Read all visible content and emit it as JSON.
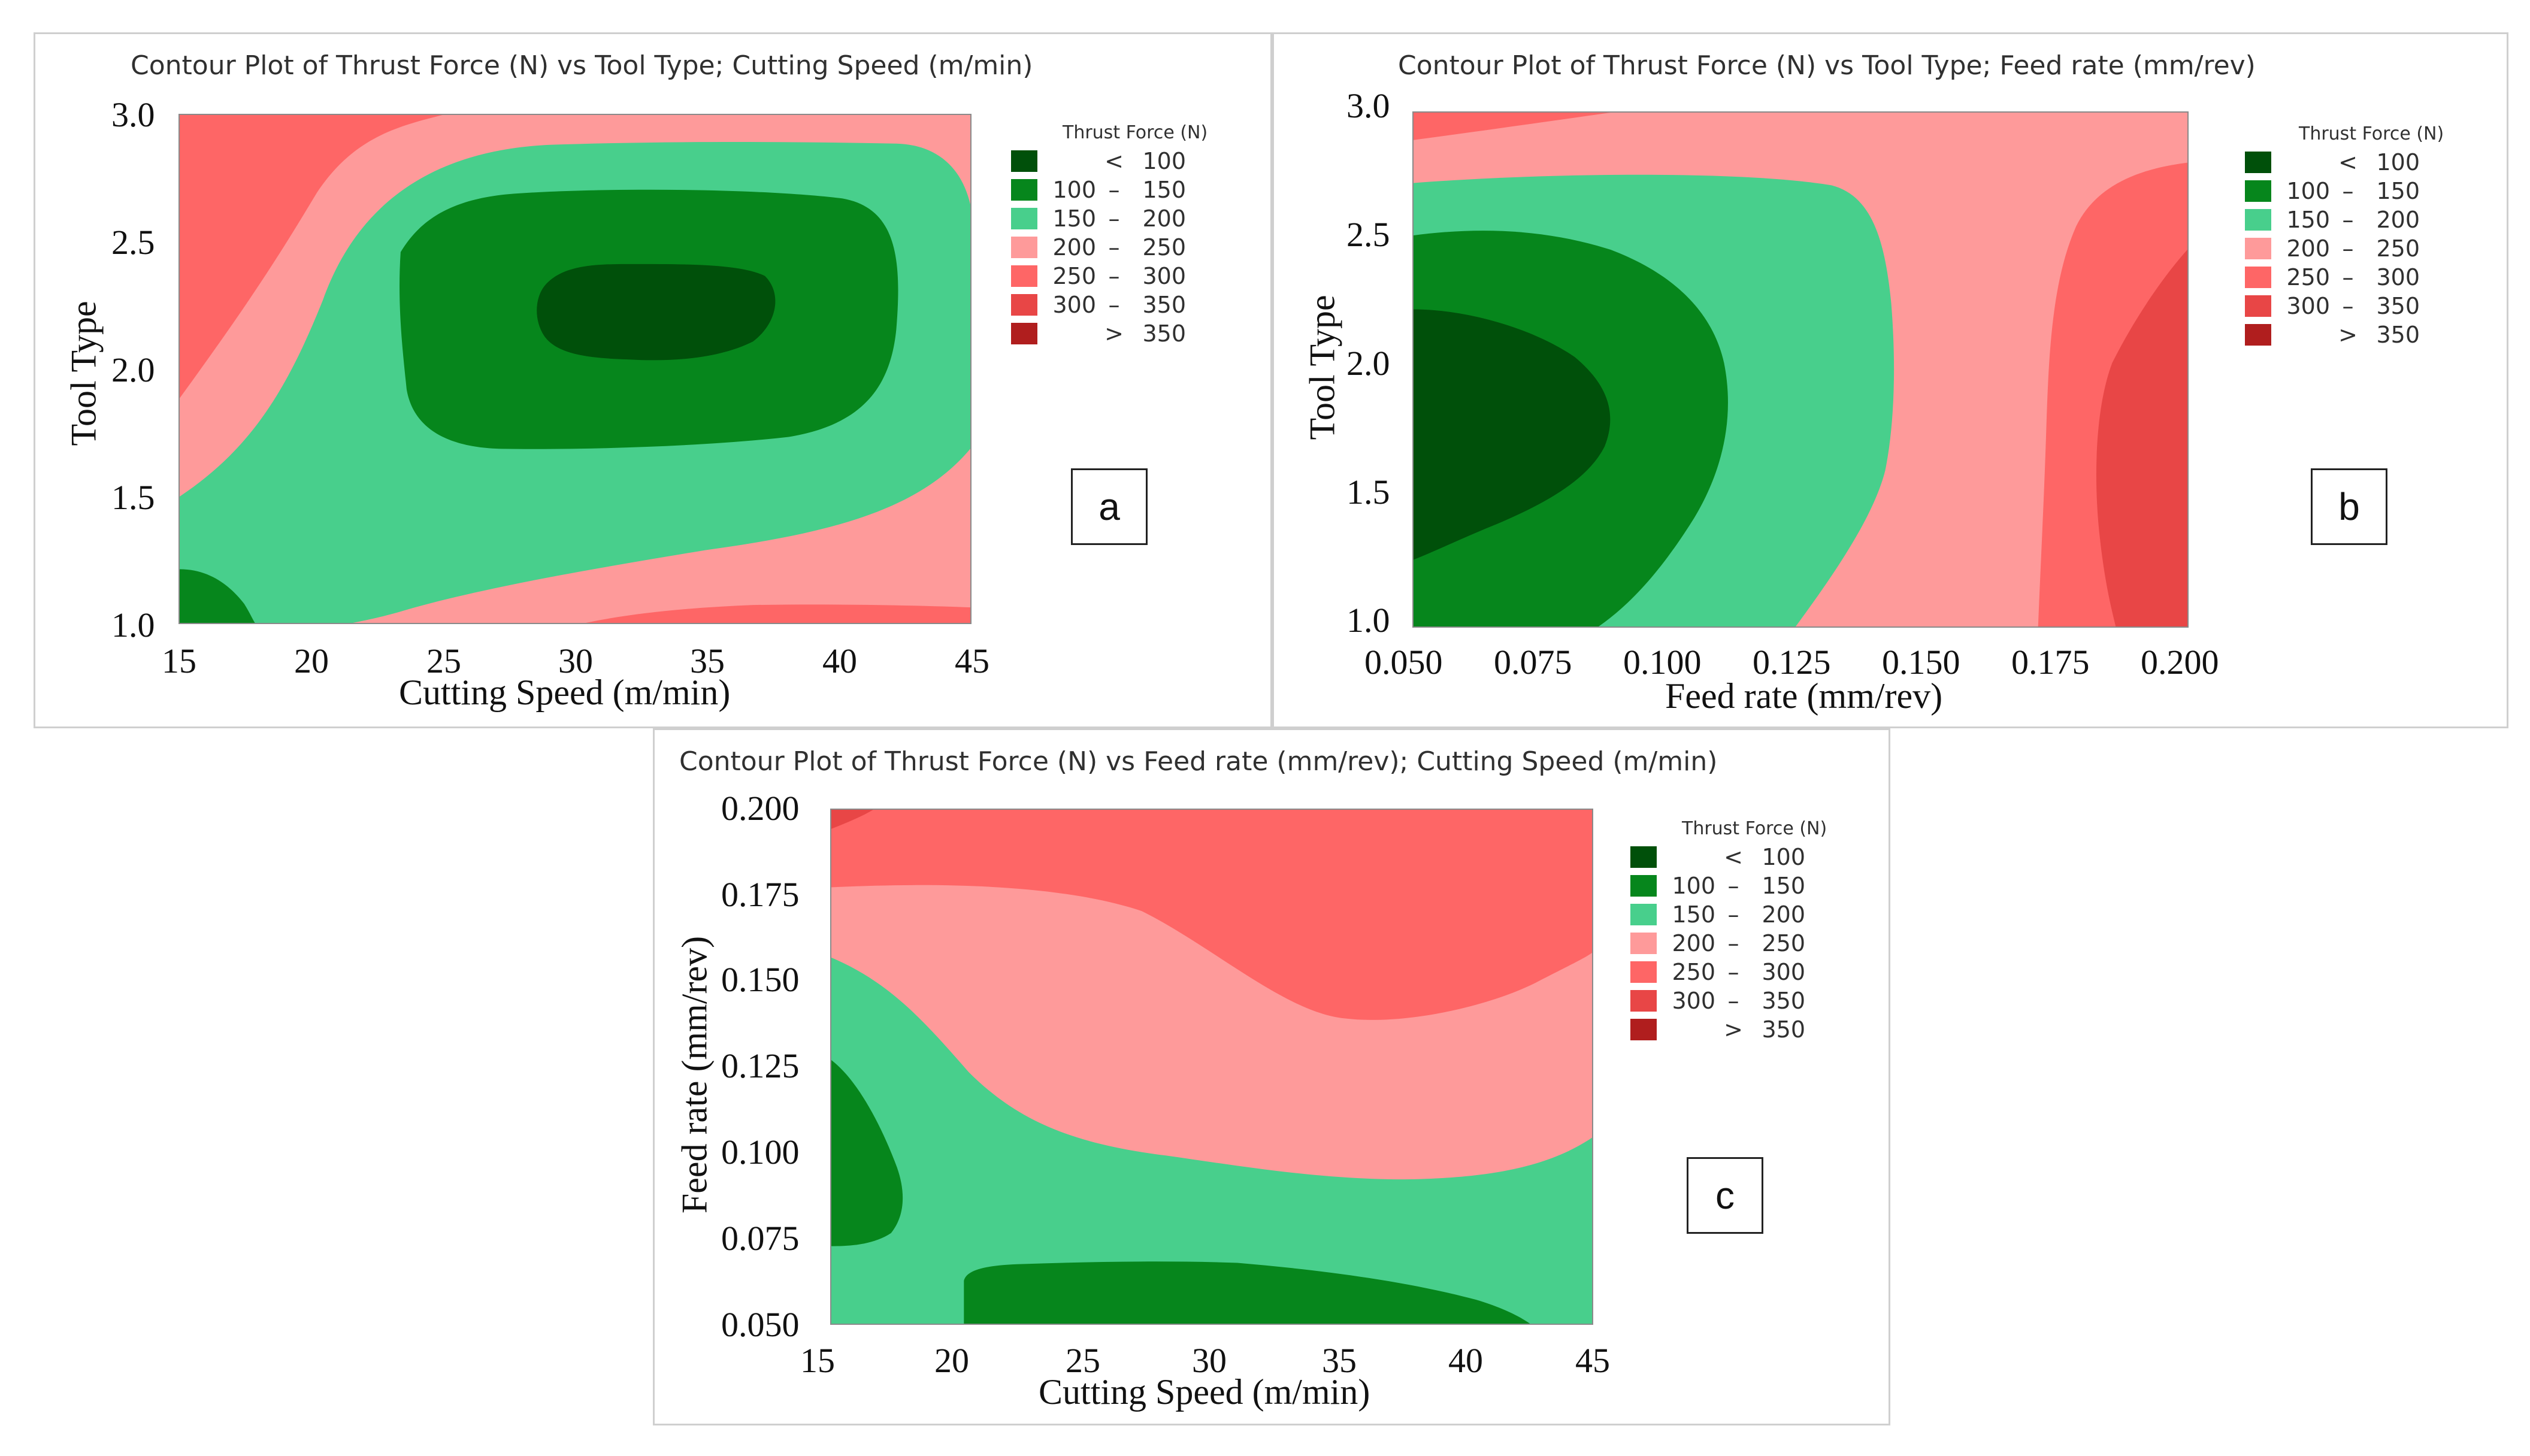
{
  "colors": {
    "lt100": "#00500a",
    "r100_150": "#06861c",
    "r150_200": "#48cf8c",
    "r200_250": "#fe9a9a",
    "r250_300": "#fe6666",
    "r300_350": "#e84646",
    "gt350": "#b01e1e"
  },
  "chart_data": [
    {
      "type": "contour",
      "panel_label": "a",
      "title": "Contour Plot of Thrust Force (N) vs Tool Type; Cutting Speed (m/min)",
      "xlabel": "Cutting Speed (m/min)",
      "ylabel": "Tool Type",
      "xlim": [
        15,
        45
      ],
      "ylim": [
        1.0,
        3.0
      ],
      "xticks": [
        "15",
        "20",
        "25",
        "30",
        "35",
        "40",
        "45"
      ],
      "yticks": [
        "1.0",
        "1.5",
        "2.0",
        "2.5",
        "3.0"
      ],
      "legend": {
        "title": "Thrust Force (N)",
        "entries": [
          {
            "lo": "",
            "sep": "<",
            "hi": "100",
            "color": "#00500a"
          },
          {
            "lo": "100",
            "sep": "–",
            "hi": "150",
            "color": "#06861c"
          },
          {
            "lo": "150",
            "sep": "–",
            "hi": "200",
            "color": "#48cf8c"
          },
          {
            "lo": "200",
            "sep": "–",
            "hi": "250",
            "color": "#fe9a9a"
          },
          {
            "lo": "250",
            "sep": "–",
            "hi": "300",
            "color": "#fe6666"
          },
          {
            "lo": "300",
            "sep": "–",
            "hi": "350",
            "color": "#e84646"
          },
          {
            "lo": "",
            "sep": ">",
            "hi": "350",
            "color": "#b01e1e"
          }
        ]
      }
    },
    {
      "type": "contour",
      "panel_label": "b",
      "title": "Contour Plot of Thrust Force (N) vs Tool Type; Feed rate (mm/rev)",
      "xlabel": "Feed rate (mm/rev)",
      "ylabel": "Tool Type",
      "xlim": [
        0.05,
        0.2
      ],
      "ylim": [
        1.0,
        3.0
      ],
      "xticks": [
        "0.050",
        "0.075",
        "0.100",
        "0.125",
        "0.150",
        "0.175",
        "0.200"
      ],
      "yticks": [
        "1.0",
        "1.5",
        "2.0",
        "2.5",
        "3.0"
      ],
      "legend": {
        "title": "Thrust Force (N)",
        "entries": [
          {
            "lo": "",
            "sep": "<",
            "hi": "100",
            "color": "#00500a"
          },
          {
            "lo": "100",
            "sep": "–",
            "hi": "150",
            "color": "#06861c"
          },
          {
            "lo": "150",
            "sep": "–",
            "hi": "200",
            "color": "#48cf8c"
          },
          {
            "lo": "200",
            "sep": "–",
            "hi": "250",
            "color": "#fe9a9a"
          },
          {
            "lo": "250",
            "sep": "–",
            "hi": "300",
            "color": "#fe6666"
          },
          {
            "lo": "300",
            "sep": "–",
            "hi": "350",
            "color": "#e84646"
          },
          {
            "lo": "",
            "sep": ">",
            "hi": "350",
            "color": "#b01e1e"
          }
        ]
      }
    },
    {
      "type": "contour",
      "panel_label": "c",
      "title": "Contour Plot of Thrust Force (N) vs Feed rate (mm/rev); Cutting Speed (m/min)",
      "xlabel": "Cutting Speed (m/min)",
      "ylabel": "Feed rate (mm/rev)",
      "xlim": [
        15,
        45
      ],
      "ylim": [
        0.05,
        0.2
      ],
      "xticks": [
        "15",
        "20",
        "25",
        "30",
        "35",
        "40",
        "45"
      ],
      "yticks": [
        "0.050",
        "0.075",
        "0.100",
        "0.125",
        "0.150",
        "0.175",
        "0.200"
      ],
      "legend": {
        "title": "Thrust Force (N)",
        "entries": [
          {
            "lo": "",
            "sep": "<",
            "hi": "100",
            "color": "#00500a"
          },
          {
            "lo": "100",
            "sep": "–",
            "hi": "150",
            "color": "#06861c"
          },
          {
            "lo": "150",
            "sep": "–",
            "hi": "200",
            "color": "#48cf8c"
          },
          {
            "lo": "200",
            "sep": "–",
            "hi": "250",
            "color": "#fe9a9a"
          },
          {
            "lo": "250",
            "sep": "–",
            "hi": "300",
            "color": "#fe6666"
          },
          {
            "lo": "300",
            "sep": "–",
            "hi": "350",
            "color": "#e84646"
          },
          {
            "lo": "",
            "sep": ">",
            "hi": "350",
            "color": "#b01e1e"
          }
        ]
      }
    }
  ]
}
